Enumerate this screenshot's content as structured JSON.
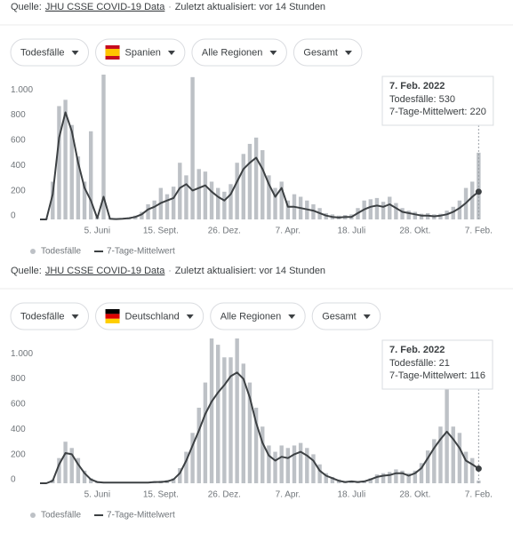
{
  "panels": [
    {
      "source_label": "Quelle:",
      "source_link": "JHU CSSE COVID-19 Data",
      "separator": "·",
      "updated": "Zuletzt aktualisiert: vor 14 Stunden",
      "filters": [
        "Todesfälle",
        "Spanien",
        "Alle Regionen",
        "Gesamt"
      ]
    },
    {
      "source_label": "Quelle:",
      "source_link": "JHU CSSE COVID-19 Data",
      "separator": "·",
      "updated": "Zuletzt aktualisiert: vor 14 Stunden",
      "filters": [
        "Todesfälle",
        "Deutschland",
        "Alle Regionen",
        "Gesamt"
      ]
    }
  ],
  "chart_data": [
    {
      "type": "combo",
      "categories": [
        null,
        null,
        null,
        null,
        null,
        null,
        null,
        null,
        null,
        "5. Juni",
        null,
        null,
        null,
        null,
        null,
        null,
        null,
        null,
        null,
        "15. Sept.",
        null,
        null,
        null,
        null,
        null,
        null,
        null,
        null,
        null,
        "26. Dez.",
        null,
        null,
        null,
        null,
        null,
        null,
        null,
        null,
        null,
        "7. Apr.",
        null,
        null,
        null,
        null,
        null,
        null,
        null,
        null,
        null,
        "18. Juli",
        null,
        null,
        null,
        null,
        null,
        null,
        null,
        null,
        null,
        "28. Okt.",
        null,
        null,
        null,
        null,
        null,
        null,
        null,
        null,
        null,
        "7. Feb."
      ],
      "series": [
        {
          "name": "Todesfälle",
          "kind": "bar",
          "color": "#bdc1c6",
          "values": [
            0,
            5,
            300,
            900,
            950,
            750,
            500,
            300,
            700,
            20,
            1150,
            10,
            5,
            8,
            15,
            30,
            60,
            120,
            150,
            250,
            200,
            260,
            450,
            350,
            1130,
            400,
            380,
            300,
            250,
            220,
            280,
            450,
            520,
            600,
            650,
            550,
            350,
            250,
            300,
            150,
            200,
            180,
            150,
            120,
            90,
            50,
            40,
            30,
            35,
            40,
            90,
            150,
            160,
            170,
            140,
            180,
            130,
            90,
            70,
            60,
            45,
            50,
            40,
            45,
            70,
            100,
            150,
            250,
            300,
            530
          ]
        },
        {
          "name": "7-Tage-Mittelwert",
          "kind": "line",
          "color": "#3c4043",
          "values": [
            0,
            0,
            200,
            650,
            850,
            700,
            450,
            250,
            150,
            10,
            180,
            5,
            3,
            5,
            10,
            20,
            40,
            80,
            100,
            130,
            150,
            170,
            250,
            280,
            230,
            250,
            270,
            220,
            180,
            150,
            200,
            300,
            400,
            450,
            490,
            400,
            280,
            180,
            250,
            100,
            100,
            90,
            80,
            70,
            50,
            30,
            20,
            15,
            20,
            20,
            50,
            80,
            100,
            110,
            100,
            120,
            90,
            60,
            50,
            40,
            30,
            30,
            25,
            30,
            40,
            60,
            90,
            130,
            180,
            220
          ]
        }
      ],
      "ylim": [
        0,
        1150
      ],
      "yticks": [
        0,
        200,
        400,
        600,
        800,
        {
          "value": 1000,
          "label": "1.000"
        }
      ],
      "grid": false,
      "tooltip": {
        "title": "7. Feb. 2022",
        "lines": [
          "Todesfälle: 530",
          "7-Tage-Mittelwert: 220"
        ]
      }
    },
    {
      "type": "combo",
      "categories": [
        null,
        null,
        null,
        null,
        null,
        null,
        null,
        null,
        null,
        "5. Juni",
        null,
        null,
        null,
        null,
        null,
        null,
        null,
        null,
        null,
        "15. Sept.",
        null,
        null,
        null,
        null,
        null,
        null,
        null,
        null,
        null,
        "26. Dez.",
        null,
        null,
        null,
        null,
        null,
        null,
        null,
        null,
        null,
        "7. Apr.",
        null,
        null,
        null,
        null,
        null,
        null,
        null,
        null,
        null,
        "18. Juli",
        null,
        null,
        null,
        null,
        null,
        null,
        null,
        null,
        null,
        "28. Okt.",
        null,
        null,
        null,
        null,
        null,
        null,
        null,
        null,
        null,
        "7. Feb."
      ],
      "series": [
        {
          "name": "Todesfälle",
          "kind": "bar",
          "color": "#bdc1c6",
          "values": [
            0,
            0,
            30,
            200,
            330,
            280,
            200,
            100,
            40,
            15,
            10,
            8,
            8,
            6,
            5,
            6,
            8,
            10,
            15,
            20,
            25,
            40,
            120,
            250,
            400,
            600,
            800,
            1150,
            1100,
            1000,
            1000,
            1150,
            950,
            800,
            600,
            450,
            300,
            250,
            300,
            280,
            300,
            320,
            280,
            230,
            150,
            80,
            50,
            30,
            15,
            20,
            15,
            20,
            40,
            70,
            80,
            90,
            110,
            100,
            80,
            100,
            160,
            260,
            350,
            450,
            800,
            450,
            400,
            250,
            200,
            21
          ]
        },
        {
          "name": "7-Tage-Mittelwert",
          "kind": "line",
          "color": "#3c4043",
          "values": [
            0,
            0,
            20,
            150,
            240,
            230,
            150,
            80,
            30,
            10,
            5,
            5,
            5,
            5,
            5,
            5,
            5,
            5,
            10,
            10,
            15,
            30,
            80,
            180,
            300,
            420,
            550,
            650,
            720,
            780,
            850,
            880,
            830,
            680,
            480,
            320,
            220,
            180,
            210,
            200,
            230,
            250,
            220,
            180,
            100,
            60,
            40,
            20,
            10,
            15,
            10,
            15,
            30,
            50,
            60,
            65,
            80,
            80,
            60,
            80,
            120,
            200,
            280,
            350,
            410,
            350,
            280,
            180,
            150,
            116
          ]
        }
      ],
      "ylim": [
        0,
        1150
      ],
      "yticks": [
        0,
        200,
        400,
        600,
        800,
        {
          "value": 1000,
          "label": "1.000"
        }
      ],
      "grid": false,
      "tooltip": {
        "title": "7. Feb. 2022",
        "lines": [
          "Todesfälle: 21",
          "7-Tage-Mittelwert: 116"
        ]
      }
    }
  ]
}
